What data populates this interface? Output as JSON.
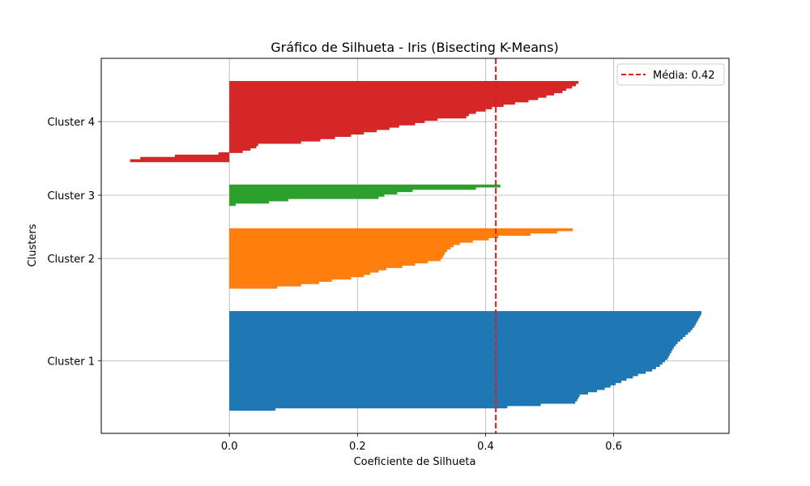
{
  "chart_data": {
    "type": "bar",
    "orientation": "horizontal",
    "title": "Gráfico de Silhueta - Iris (Bisecting K-Means)",
    "xlabel": "Coeficiente de Silhueta",
    "ylabel": "Clusters",
    "xlim": [
      -0.2,
      0.78
    ],
    "xticks": [
      0.0,
      0.2,
      0.4,
      0.6
    ],
    "xtick_labels": [
      "0.0",
      "0.2",
      "0.4",
      "0.6"
    ],
    "grid": true,
    "legend": {
      "position": "top-right",
      "entries": [
        "Média: 0.42"
      ]
    },
    "mean_line": {
      "value": 0.416,
      "label": "Média: 0.42",
      "color": "#e41a1c",
      "style": "dashed"
    },
    "y_gap": 10,
    "clusters": [
      {
        "label": "Cluster 1",
        "color": "#1f77b4",
        "values": [
          0.737,
          0.736,
          0.734,
          0.732,
          0.73,
          0.728,
          0.726,
          0.723,
          0.72,
          0.716,
          0.712,
          0.708,
          0.704,
          0.7,
          0.697,
          0.694,
          0.692,
          0.69,
          0.688,
          0.686,
          0.684,
          0.68,
          0.676,
          0.672,
          0.666,
          0.66,
          0.65,
          0.638,
          0.63,
          0.62,
          0.612,
          0.603,
          0.595,
          0.586,
          0.574,
          0.56,
          0.547,
          0.545,
          0.543,
          0.54,
          0.486,
          0.434,
          0.072
        ]
      },
      {
        "label": "Cluster 2",
        "color": "#ff7f0e",
        "values": [
          0.536,
          0.512,
          0.47,
          0.42,
          0.405,
          0.38,
          0.36,
          0.35,
          0.345,
          0.34,
          0.337,
          0.335,
          0.333,
          0.33,
          0.31,
          0.29,
          0.27,
          0.245,
          0.233,
          0.22,
          0.21,
          0.19,
          0.16,
          0.14,
          0.112,
          0.075
        ]
      },
      {
        "label": "Cluster 3",
        "color": "#2ca02c",
        "values": [
          0.423,
          0.385,
          0.286,
          0.262,
          0.242,
          0.233,
          0.092,
          0.062,
          0.01
        ]
      },
      {
        "label": "Cluster 4",
        "color": "#d62728",
        "values": [
          0.545,
          0.541,
          0.535,
          0.526,
          0.52,
          0.507,
          0.495,
          0.482,
          0.467,
          0.446,
          0.428,
          0.41,
          0.4,
          0.385,
          0.374,
          0.37,
          0.325,
          0.305,
          0.29,
          0.265,
          0.25,
          0.23,
          0.21,
          0.19,
          0.165,
          0.142,
          0.112,
          0.045,
          0.042,
          0.033,
          0.021,
          -0.017,
          -0.085,
          -0.139,
          -0.155
        ]
      }
    ]
  }
}
